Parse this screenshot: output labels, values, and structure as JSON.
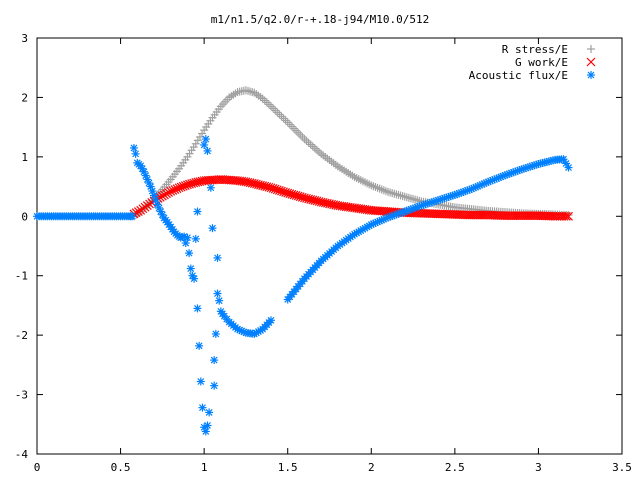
{
  "chart_data": {
    "type": "scatter",
    "title": "m1/n1.5/q2.0/r-+.18-j94/M10.0/512",
    "xlabel": "",
    "ylabel": "",
    "xlim": [
      0,
      3.5
    ],
    "ylim": [
      -4,
      3
    ],
    "grid": false,
    "legend_position": "top-right",
    "x_ticks": [
      "0",
      "0.5",
      "1",
      "1.5",
      "2",
      "2.5",
      "3",
      "3.5"
    ],
    "y_ticks": [
      "3",
      "2",
      "1",
      "0",
      "-1",
      "-2",
      "-3",
      "-4"
    ],
    "series": [
      {
        "name": "R stress/E",
        "marker": "plus",
        "color": "#a0a0a0",
        "points": [
          [
            0.58,
            0.0
          ],
          [
            0.62,
            0.08
          ],
          [
            0.66,
            0.18
          ],
          [
            0.7,
            0.3
          ],
          [
            0.75,
            0.45
          ],
          [
            0.8,
            0.62
          ],
          [
            0.85,
            0.8
          ],
          [
            0.9,
            1.0
          ],
          [
            0.95,
            1.22
          ],
          [
            1.0,
            1.45
          ],
          [
            1.05,
            1.66
          ],
          [
            1.1,
            1.85
          ],
          [
            1.15,
            2.0
          ],
          [
            1.2,
            2.09
          ],
          [
            1.25,
            2.12
          ],
          [
            1.3,
            2.08
          ],
          [
            1.35,
            1.98
          ],
          [
            1.4,
            1.85
          ],
          [
            1.5,
            1.58
          ],
          [
            1.6,
            1.3
          ],
          [
            1.7,
            1.05
          ],
          [
            1.8,
            0.84
          ],
          [
            1.9,
            0.66
          ],
          [
            2.0,
            0.52
          ],
          [
            2.1,
            0.41
          ],
          [
            2.2,
            0.33
          ],
          [
            2.3,
            0.25
          ],
          [
            2.4,
            0.2
          ],
          [
            2.5,
            0.15
          ],
          [
            2.6,
            0.12
          ],
          [
            2.7,
            0.09
          ],
          [
            2.8,
            0.07
          ],
          [
            2.9,
            0.05
          ],
          [
            3.0,
            0.04
          ],
          [
            3.1,
            0.03
          ],
          [
            3.18,
            0.02
          ]
        ]
      },
      {
        "name": "G work/E",
        "marker": "cross",
        "color": "#ff0000",
        "points": [
          [
            0.58,
            0.04
          ],
          [
            0.62,
            0.1
          ],
          [
            0.66,
            0.18
          ],
          [
            0.7,
            0.26
          ],
          [
            0.75,
            0.34
          ],
          [
            0.8,
            0.42
          ],
          [
            0.85,
            0.48
          ],
          [
            0.9,
            0.53
          ],
          [
            0.95,
            0.57
          ],
          [
            1.0,
            0.6
          ],
          [
            1.05,
            0.61
          ],
          [
            1.1,
            0.62
          ],
          [
            1.15,
            0.61
          ],
          [
            1.2,
            0.6
          ],
          [
            1.25,
            0.58
          ],
          [
            1.3,
            0.55
          ],
          [
            1.4,
            0.48
          ],
          [
            1.5,
            0.39
          ],
          [
            1.6,
            0.31
          ],
          [
            1.7,
            0.24
          ],
          [
            1.8,
            0.18
          ],
          [
            1.9,
            0.14
          ],
          [
            2.0,
            0.1
          ],
          [
            2.1,
            0.08
          ],
          [
            2.2,
            0.06
          ],
          [
            2.3,
            0.05
          ],
          [
            2.4,
            0.04
          ],
          [
            2.5,
            0.03
          ],
          [
            2.6,
            0.02
          ],
          [
            2.7,
            0.02
          ],
          [
            2.8,
            0.01
          ],
          [
            2.9,
            0.01
          ],
          [
            3.0,
            0.01
          ],
          [
            3.1,
            0.0
          ],
          [
            3.18,
            0.0
          ]
        ]
      },
      {
        "name": "Acoustic flux/E",
        "marker": "star",
        "color": "#0080ff",
        "points": [
          [
            0.0,
            0.0
          ],
          [
            0.05,
            0.0
          ],
          [
            0.1,
            0.0
          ],
          [
            0.15,
            0.0
          ],
          [
            0.2,
            0.0
          ],
          [
            0.25,
            0.0
          ],
          [
            0.3,
            0.0
          ],
          [
            0.35,
            0.0
          ],
          [
            0.4,
            0.0
          ],
          [
            0.45,
            0.0
          ],
          [
            0.5,
            0.0
          ],
          [
            0.55,
            0.0
          ],
          [
            0.57,
            0.0
          ],
          [
            0.58,
            1.15
          ],
          [
            0.59,
            1.05
          ],
          [
            0.6,
            0.9
          ],
          [
            0.62,
            0.85
          ],
          [
            0.64,
            0.75
          ],
          [
            0.66,
            0.62
          ],
          [
            0.68,
            0.5
          ],
          [
            0.7,
            0.35
          ],
          [
            0.72,
            0.2
          ],
          [
            0.74,
            0.08
          ],
          [
            0.76,
            -0.03
          ],
          [
            0.78,
            -0.1
          ],
          [
            0.8,
            -0.18
          ],
          [
            0.82,
            -0.26
          ],
          [
            0.84,
            -0.32
          ],
          [
            0.86,
            -0.36
          ],
          [
            0.88,
            -0.34
          ],
          [
            0.89,
            -0.45
          ],
          [
            0.9,
            -0.36
          ],
          [
            0.91,
            -0.62
          ],
          [
            0.92,
            -0.88
          ],
          [
            0.93,
            -1.0
          ],
          [
            0.94,
            -1.05
          ],
          [
            0.95,
            -0.38
          ],
          [
            0.96,
            0.08
          ],
          [
            0.96,
            -1.55
          ],
          [
            0.97,
            -2.18
          ],
          [
            0.98,
            -2.78
          ],
          [
            0.99,
            -3.22
          ],
          [
            1.0,
            -3.55
          ],
          [
            1.0,
            1.2
          ],
          [
            1.01,
            1.3
          ],
          [
            1.02,
            1.1
          ],
          [
            1.01,
            -3.62
          ],
          [
            1.02,
            -3.52
          ],
          [
            1.03,
            -3.3
          ],
          [
            1.04,
            0.48
          ],
          [
            1.05,
            -0.2
          ],
          [
            1.06,
            -2.85
          ],
          [
            1.06,
            -2.42
          ],
          [
            1.07,
            -1.98
          ],
          [
            1.08,
            -1.3
          ],
          [
            1.08,
            -0.7
          ],
          [
            1.09,
            -1.42
          ],
          [
            1.1,
            -1.6
          ],
          [
            1.12,
            -1.68
          ],
          [
            1.15,
            -1.78
          ],
          [
            1.2,
            -1.9
          ],
          [
            1.25,
            -1.96
          ],
          [
            1.3,
            -1.98
          ],
          [
            1.35,
            -1.9
          ],
          [
            1.4,
            -1.75
          ],
          [
            1.5,
            -1.4
          ],
          [
            1.6,
            -1.05
          ],
          [
            1.7,
            -0.75
          ],
          [
            1.8,
            -0.5
          ],
          [
            1.9,
            -0.3
          ],
          [
            2.0,
            -0.14
          ],
          [
            2.1,
            -0.02
          ],
          [
            2.2,
            0.08
          ],
          [
            2.3,
            0.18
          ],
          [
            2.4,
            0.27
          ],
          [
            2.5,
            0.36
          ],
          [
            2.6,
            0.46
          ],
          [
            2.7,
            0.58
          ],
          [
            2.8,
            0.69
          ],
          [
            2.9,
            0.79
          ],
          [
            3.0,
            0.88
          ],
          [
            3.1,
            0.95
          ],
          [
            3.15,
            0.96
          ],
          [
            3.18,
            0.82
          ]
        ]
      }
    ]
  }
}
